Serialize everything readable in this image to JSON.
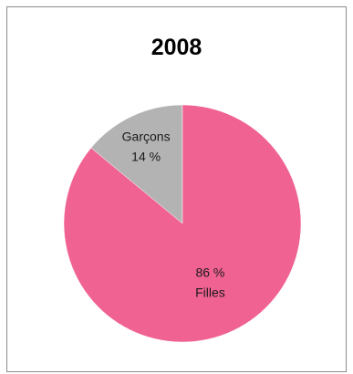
{
  "chart_data": {
    "type": "pie",
    "title": "2008",
    "slices": [
      {
        "category": "Garçons",
        "value": 14,
        "value_label": "14 %",
        "color": "#b3b3b3"
      },
      {
        "category": "Filles",
        "value": 86,
        "value_label": "86 %",
        "color": "#f06292"
      }
    ],
    "legend": "none"
  }
}
